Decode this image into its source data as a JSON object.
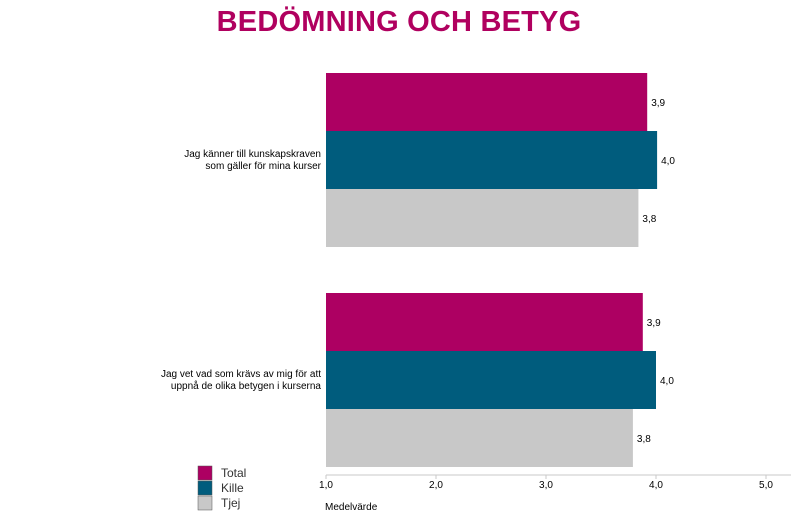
{
  "chart_data": {
    "type": "bar",
    "orientation": "horizontal",
    "title": "BEDÖMNING OCH BETYG",
    "xlabel": "Medelvärde",
    "ylabel": "",
    "xlim": [
      1.0,
      5.0
    ],
    "x_ticks": [
      "1,0",
      "2,0",
      "3,0",
      "4,0",
      "5,0"
    ],
    "grid": false,
    "legend_position": "bottom-left",
    "categories": [
      [
        "Jag känner till kunskapskraven",
        "som gäller för mina kurser"
      ],
      [
        "Jag vet vad som krävs av mig för att",
        "uppnå de olika betygen i kurserna"
      ]
    ],
    "series": [
      {
        "name": "Total",
        "color": "#ad0062",
        "values": [
          3.92,
          3.88
        ],
        "labels": [
          "3,9",
          "3,9"
        ]
      },
      {
        "name": "Kille",
        "color": "#005c7d",
        "values": [
          4.01,
          4.0
        ],
        "labels": [
          "4,0",
          "4,0"
        ]
      },
      {
        "name": "Tjej",
        "color": "#c8c8c8",
        "values": [
          3.84,
          3.79
        ],
        "labels": [
          "3,8",
          "3,8"
        ]
      }
    ]
  }
}
